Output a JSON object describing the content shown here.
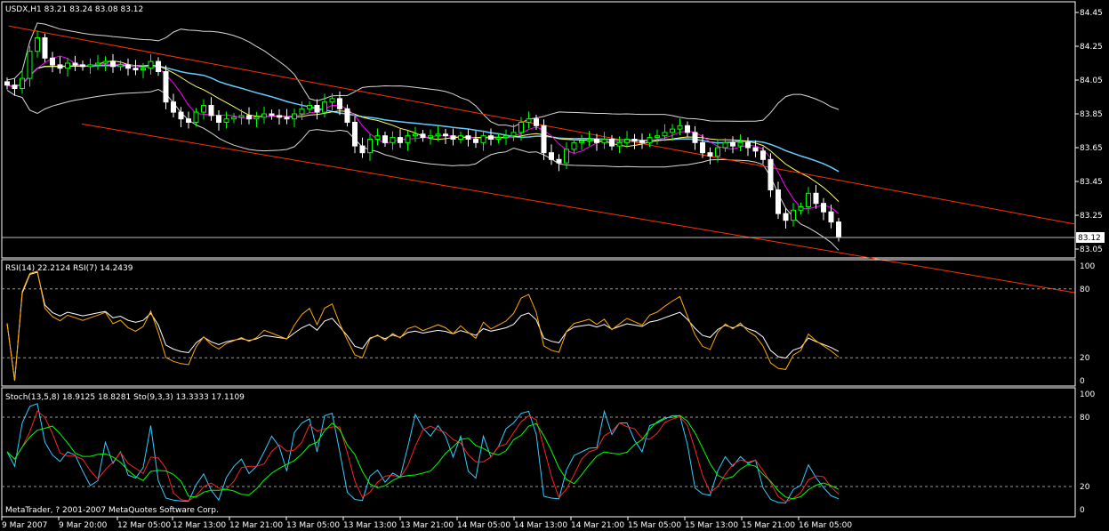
{
  "colors": {
    "background": "#000000",
    "frame": "#ffffff",
    "bull_candle": "#00ff00",
    "bear_candle": "#ffffff",
    "channel": "#ff3300",
    "bollinger": "#d8d8d8",
    "ma_fast": "#ff00ff",
    "ma_slow": "#ffff66",
    "ma_long": "#66ccff",
    "rsi14": "#ffffff",
    "rsi7": "#ffaa00",
    "stoch_main": "#33ccff",
    "stoch_signal": "#ff2222",
    "stoch2": "#00ff00",
    "price_marker_bg": "#ffffff",
    "price_marker_text": "#000000"
  },
  "main_panel": {
    "header": "USDX,H1  83.21 83.24 83.08 83.12",
    "current_price_label": "83.12",
    "price_ticks": [
      "84.45",
      "84.25",
      "84.05",
      "83.85",
      "83.65",
      "83.45",
      "83.25",
      "83.05"
    ]
  },
  "rsi_panel": {
    "header": "RSI(14) 22.2124  RSI(7) 14.2439",
    "ticks": [
      "100",
      "80",
      "20",
      "0"
    ]
  },
  "stoch_panel": {
    "header": "Stoch(13,5,8) 18.9125 18.8281  Sto(9,3,3) 13.3333 17.1109",
    "ticks": [
      "100",
      "80",
      "20",
      "0"
    ],
    "copyright": "MetaTrader, ? 2001-2007 MetaQuotes Software Corp."
  },
  "time_axis": {
    "labels": [
      "9 Mar 2007",
      "9 Mar 20:00",
      "12 Mar 05:00",
      "12 Mar 13:00",
      "12 Mar 21:00",
      "13 Mar 05:00",
      "13 Mar 13:00",
      "13 Mar 21:00",
      "14 Mar 05:00",
      "14 Mar 13:00",
      "14 Mar 21:00",
      "15 Mar 05:00",
      "15 Mar 13:00",
      "15 Mar 21:00",
      "16 Mar 05:00"
    ]
  },
  "chart_data": {
    "type": "candlestick",
    "symbol": "USDX",
    "timeframe": "H1",
    "ohlc_last": {
      "open": 83.21,
      "high": 83.24,
      "low": 83.08,
      "close": 83.12
    },
    "ylim": [
      83.0,
      84.5
    ],
    "close_series": [
      84.02,
      84.0,
      84.06,
      84.22,
      84.3,
      84.18,
      84.14,
      84.12,
      84.15,
      84.14,
      84.13,
      84.14,
      84.15,
      84.16,
      84.13,
      84.14,
      84.12,
      84.11,
      84.12,
      84.16,
      84.1,
      83.92,
      83.86,
      83.82,
      83.8,
      83.86,
      83.9,
      83.84,
      83.8,
      83.82,
      83.83,
      83.84,
      83.82,
      83.83,
      83.85,
      83.84,
      83.83,
      83.82,
      83.85,
      83.88,
      83.9,
      83.86,
      83.92,
      83.94,
      83.88,
      83.8,
      83.66,
      83.62,
      83.7,
      83.72,
      83.68,
      83.71,
      83.68,
      83.72,
      83.73,
      83.71,
      83.72,
      83.73,
      83.72,
      83.7,
      83.72,
      83.7,
      83.68,
      83.72,
      83.7,
      83.71,
      83.72,
      83.74,
      83.8,
      83.82,
      83.78,
      83.62,
      83.58,
      83.56,
      83.64,
      83.68,
      83.69,
      83.7,
      83.68,
      83.7,
      83.66,
      83.68,
      83.7,
      83.69,
      83.68,
      83.71,
      83.72,
      83.74,
      83.76,
      83.78,
      83.74,
      83.68,
      83.62,
      83.6,
      83.65,
      83.68,
      83.66,
      83.68,
      83.65,
      83.63,
      83.58,
      83.4,
      83.26,
      83.22,
      83.28,
      83.3,
      83.38,
      83.32,
      83.27,
      83.21,
      83.12
    ],
    "channel_upper": {
      "from": [
        "9 Mar 2007",
        84.37
      ],
      "to": [
        "16 Mar 05:00",
        83.48
      ]
    },
    "channel_lower": {
      "from": [
        "9 Mar 20:00",
        83.79
      ],
      "to": [
        "16 Mar 05:00",
        83.05
      ]
    },
    "rsi": {
      "rsi14": 22.2124,
      "rsi7": 14.2439,
      "levels": [
        80,
        20
      ]
    },
    "stochastic": {
      "stoch_13_5_8": {
        "main": 18.9125,
        "signal": 18.8281
      },
      "sto_9_3_3": {
        "main": 13.3333,
        "signal": 17.1109
      },
      "levels": [
        80,
        20
      ]
    }
  }
}
